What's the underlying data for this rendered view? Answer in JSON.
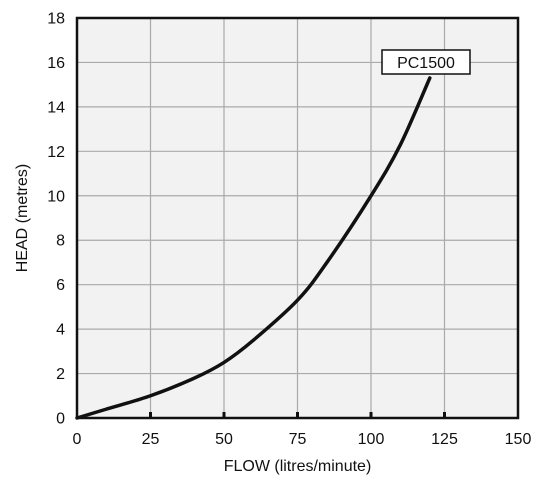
{
  "chart_data": {
    "type": "line",
    "title": "",
    "xlabel": "FLOW (litres/minute)",
    "ylabel": "HEAD (metres)",
    "xlim": [
      0,
      150
    ],
    "ylim": [
      0,
      18
    ],
    "x_ticks": [
      0,
      25,
      50,
      75,
      100,
      125,
      150
    ],
    "y_ticks": [
      0,
      2,
      4,
      6,
      8,
      10,
      12,
      14,
      16,
      18
    ],
    "grid": true,
    "series": [
      {
        "name": "PC1500",
        "x": [
          0,
          10,
          25,
          40,
          50,
          60,
          75,
          85,
          100,
          110,
          120
        ],
        "y": [
          0,
          0.4,
          1.0,
          1.8,
          2.5,
          3.5,
          5.3,
          7.0,
          10.0,
          12.3,
          15.3
        ]
      }
    ],
    "colors": {
      "curve": "#111111",
      "grid": "#aaaaaa",
      "frame": "#111111",
      "plot_bg": "#f2f2f2"
    }
  }
}
